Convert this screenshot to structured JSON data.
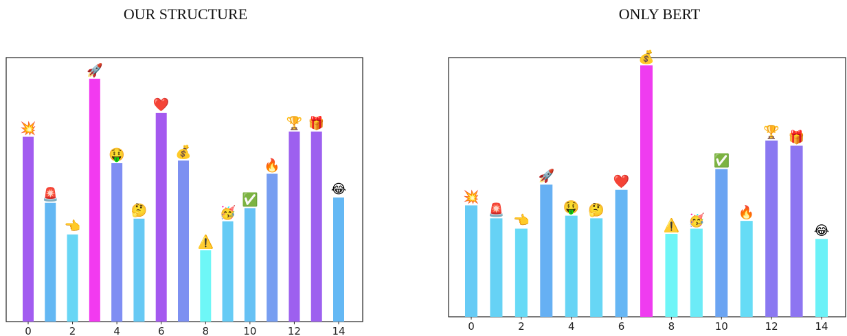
{
  "chart_data": [
    {
      "type": "bar",
      "title": "OUR STRUCTURE",
      "x": [
        0,
        1,
        2,
        3,
        4,
        5,
        6,
        7,
        8,
        9,
        10,
        11,
        12,
        13,
        14
      ],
      "x_tick_labels": [
        "0",
        "2",
        "4",
        "6",
        "8",
        "10",
        "12",
        "14"
      ],
      "values": [
        0.7,
        0.45,
        0.33,
        0.92,
        0.6,
        0.39,
        0.79,
        0.61,
        0.27,
        0.38,
        0.43,
        0.56,
        0.72,
        0.72,
        0.47
      ],
      "colors": [
        "#a25cf0",
        "#63b7f3",
        "#68d6f5",
        "#f23af0",
        "#7f8ef3",
        "#66c9f4",
        "#a459ef",
        "#7d90f1",
        "#6ef7f7",
        "#66cbf5",
        "#66c1f4",
        "#779ef1",
        "#9d60ef",
        "#9d60ef",
        "#64b8f4"
      ],
      "emojis": [
        "💥",
        "🚨",
        "👈",
        "🚀",
        "🤑",
        "🤔",
        "❤️",
        "💰",
        "⚠️",
        "🥳",
        "✅",
        "🔥",
        "🏆",
        "🎁",
        "😂"
      ],
      "ylim": [
        0,
        1
      ],
      "xlabel": "",
      "ylabel": "",
      "grid": false
    },
    {
      "type": "bar",
      "title": "ONLY BERT",
      "x": [
        0,
        1,
        2,
        3,
        4,
        5,
        6,
        7,
        8,
        9,
        10,
        11,
        12,
        13,
        14
      ],
      "x_tick_labels": [
        "0",
        "2",
        "4",
        "6",
        "8",
        "10",
        "12",
        "14"
      ],
      "values": [
        0.43,
        0.38,
        0.34,
        0.51,
        0.39,
        0.38,
        0.49,
        0.97,
        0.32,
        0.34,
        0.57,
        0.37,
        0.68,
        0.66,
        0.3
      ],
      "colors": [
        "#66cbf5",
        "#66d2f5",
        "#67daf6",
        "#66b0f3",
        "#67d4f5",
        "#67d6f5",
        "#66b6f4",
        "#ef3cf0",
        "#6ef5f7",
        "#6cebf7",
        "#6ba4f2",
        "#66dcf6",
        "#8a78f1",
        "#8d75f1",
        "#6bf1f7"
      ],
      "emojis": [
        "💥",
        "🚨",
        "👈",
        "🚀",
        "🤑",
        "🤔",
        "❤️",
        "💰",
        "⚠️",
        "🥳",
        "✅",
        "🔥",
        "🏆",
        "🎁",
        "😂"
      ],
      "ylim": [
        0,
        1
      ],
      "xlabel": "",
      "ylabel": "",
      "grid": false
    }
  ]
}
